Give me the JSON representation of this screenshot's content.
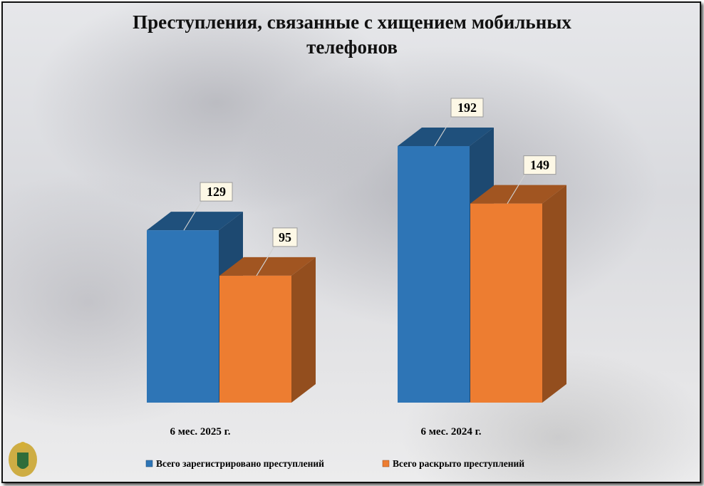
{
  "chart_data": {
    "type": "bar",
    "title": "Преступления, связанные с хищением мобильных телефонов",
    "categories": [
      "6 мес. 2025 г.",
      "6 мес. 2024 г."
    ],
    "series": [
      {
        "name": "Всего зарегистрировано преступлений",
        "color": "#2e75b6",
        "values": [
          129,
          192
        ]
      },
      {
        "name": "Всего раскрыто преступлений",
        "color": "#ed7d31",
        "values": [
          95,
          149
        ]
      }
    ]
  }
}
